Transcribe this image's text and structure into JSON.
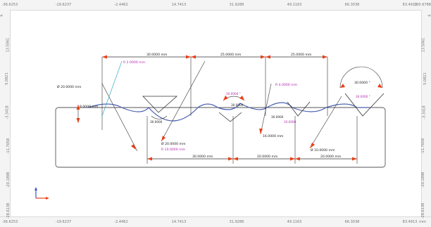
{
  "rulers": {
    "top": [
      "-36.6253",
      "-19.6237",
      "-2.4462",
      "14.7413",
      "31.9288",
      "49.1163",
      "66.3038",
      "83.4913",
      "100.6788"
    ],
    "bottom": [
      "-36.6253",
      "-19.6237",
      "-2.4462",
      "14.7413",
      "31.9288",
      "49.1163",
      "66.3038",
      "83.4913",
      "mm"
    ],
    "left": [
      "6",
      "13.5061",
      "5.0821",
      "-3.3418",
      "-11.7658",
      "-20.1898",
      "-28.6138"
    ],
    "right": [
      "6",
      "13.5061",
      "5.0821",
      "-3.3418",
      "-11.7658",
      "-20.1898",
      "-28.6138"
    ]
  },
  "dimensions": {
    "top_lengths": [
      "30.0000 mm",
      "25.0000 mm",
      "25.0000 mm"
    ],
    "bottom_lengths": [
      "30.0000 mm",
      "20.0000 mm",
      "20.0000 mm"
    ],
    "angles": [
      "30.0000 °",
      "30.0000 °",
      "30.0000 °",
      "30.0000 °"
    ],
    "radius_left_r": "R  2.0000 mm",
    "diameter_left": "Ø  20.0000 mm",
    "height_left": "8.0000 mm",
    "left_small": "30.0000",
    "diameter_lower": "Ø  20.0000 mm",
    "radius_lower": "R  10.0000 mm",
    "radius_mid": "R  4.0000 mm",
    "height_mid": "16.0000 mm",
    "diameter_right": "Ø  10.0000 mm",
    "small_mid": "30.0000",
    "small_right": "30.0000",
    "tiny_mid": "10.0000"
  },
  "colors": {
    "dimension": "#1a1a1a",
    "magenta_dim": "#b02ab0",
    "arrow": "#e8401a",
    "curve": "#4a5fb0",
    "cyan": "#33aacc",
    "shape": "#555555"
  },
  "axes": {
    "x_icon": "x-axis-icon",
    "y_icon": "y-axis-icon"
  }
}
